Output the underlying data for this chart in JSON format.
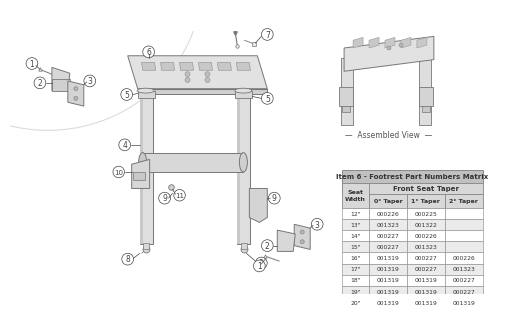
{
  "table_title": "Item 6 - Footrest Part Numbers Matrix",
  "col_headers": [
    "Seat\nWidth",
    "0° Taper",
    "1° Taper",
    "2° Taper"
  ],
  "front_seat_taper_label": "Front Seat Taper",
  "rows": [
    [
      "12\"",
      "000226",
      "000225",
      ""
    ],
    [
      "13\"",
      "001323",
      "001322",
      ""
    ],
    [
      "14\"",
      "000227",
      "000226",
      ""
    ],
    [
      "15\"",
      "000227",
      "001323",
      ""
    ],
    [
      "16\"",
      "001319",
      "000227",
      "000226"
    ],
    [
      "17\"",
      "001319",
      "000227",
      "001323"
    ],
    [
      "18\"",
      "001319",
      "001319",
      "000227"
    ],
    [
      "19\"",
      "001319",
      "001319",
      "000227"
    ],
    [
      "20\"",
      "001319",
      "001319",
      "001319"
    ]
  ],
  "assembled_view_label": "Assembled View",
  "bg_color": "#ffffff",
  "table_header_bg": "#c0c0c0",
  "table_subheader_bg": "#d8d8d8",
  "table_row_bg_odd": "#ebebeb",
  "table_row_bg_even": "#ffffff",
  "table_border": "#888888",
  "text_color": "#333333",
  "diagram_color": "#777777",
  "label_color": "#444444",
  "part_fill": "#e8e8e8",
  "part_fill2": "#d4d4d4",
  "arc_color": "#cccccc"
}
